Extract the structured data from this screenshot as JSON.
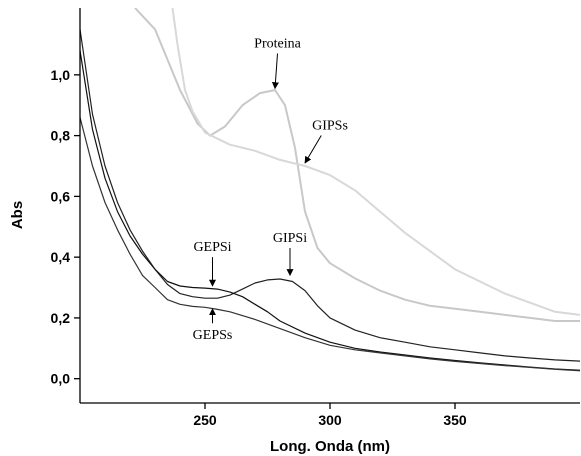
{
  "chart_data": {
    "type": "line",
    "xlabel": "Long. Onda (nm)",
    "ylabel": "Abs",
    "xlim": [
      200,
      400
    ],
    "ylim": [
      -0.08,
      1.22
    ],
    "xticks": [
      250,
      300,
      350
    ],
    "xtick_labels": [
      "250",
      "300",
      "350"
    ],
    "yticks": [
      0.0,
      0.2,
      0.4,
      0.6,
      0.8,
      1.0
    ],
    "ytick_labels": [
      "0,0",
      "0,2",
      "0,4",
      "0,6",
      "0,8",
      "1,0"
    ],
    "grid": false,
    "series": [
      {
        "name": "Proteina",
        "color": "#c8c8c8",
        "x": [
          222,
          230,
          240,
          247,
          252,
          258,
          265,
          272,
          278,
          282,
          286,
          290,
          295,
          300,
          310,
          320,
          330,
          340,
          350,
          360,
          370,
          380,
          390,
          400
        ],
        "y": [
          1.22,
          1.15,
          0.95,
          0.84,
          0.8,
          0.83,
          0.9,
          0.94,
          0.95,
          0.9,
          0.76,
          0.55,
          0.43,
          0.38,
          0.33,
          0.29,
          0.26,
          0.24,
          0.23,
          0.22,
          0.21,
          0.2,
          0.19,
          0.19
        ]
      },
      {
        "name": "GIPSs",
        "color": "#d8d8d8",
        "x": [
          237,
          239,
          242,
          245,
          250,
          255,
          260,
          270,
          280,
          290,
          300,
          310,
          320,
          330,
          340,
          350,
          360,
          370,
          380,
          390,
          400
        ],
        "y": [
          1.22,
          1.1,
          0.95,
          0.88,
          0.81,
          0.79,
          0.77,
          0.75,
          0.72,
          0.7,
          0.67,
          0.62,
          0.55,
          0.48,
          0.42,
          0.36,
          0.32,
          0.28,
          0.25,
          0.22,
          0.21
        ]
      },
      {
        "name": "GIPSi",
        "color": "#222222",
        "x": [
          200,
          205,
          210,
          215,
          220,
          225,
          230,
          235,
          240,
          245,
          250,
          255,
          260,
          265,
          270,
          275,
          280,
          285,
          290,
          295,
          300,
          310,
          320,
          330,
          340,
          350,
          360,
          370,
          380,
          390,
          400
        ],
        "y": [
          1.15,
          0.87,
          0.7,
          0.58,
          0.49,
          0.42,
          0.36,
          0.31,
          0.28,
          0.27,
          0.265,
          0.265,
          0.275,
          0.295,
          0.315,
          0.325,
          0.328,
          0.32,
          0.29,
          0.24,
          0.2,
          0.16,
          0.135,
          0.12,
          0.105,
          0.095,
          0.085,
          0.075,
          0.068,
          0.062,
          0.058
        ]
      },
      {
        "name": "GEPSi",
        "color": "#111111",
        "x": [
          200,
          205,
          210,
          215,
          220,
          225,
          230,
          235,
          240,
          245,
          250,
          255,
          260,
          265,
          270,
          275,
          280,
          290,
          300,
          310,
          320,
          330,
          340,
          350,
          360,
          370,
          380,
          390,
          400
        ],
        "y": [
          1.08,
          0.82,
          0.66,
          0.55,
          0.47,
          0.41,
          0.36,
          0.32,
          0.305,
          0.3,
          0.298,
          0.295,
          0.285,
          0.27,
          0.245,
          0.22,
          0.19,
          0.15,
          0.12,
          0.1,
          0.088,
          0.078,
          0.068,
          0.06,
          0.052,
          0.045,
          0.038,
          0.032,
          0.028
        ]
      },
      {
        "name": "GEPSs",
        "color": "#333333",
        "x": [
          200,
          205,
          210,
          215,
          220,
          225,
          230,
          235,
          240,
          245,
          250,
          255,
          260,
          270,
          280,
          290,
          300,
          310,
          320,
          330,
          340,
          350,
          360,
          370,
          380,
          390,
          400
        ],
        "y": [
          0.86,
          0.7,
          0.58,
          0.49,
          0.41,
          0.34,
          0.3,
          0.26,
          0.245,
          0.238,
          0.235,
          0.228,
          0.22,
          0.195,
          0.165,
          0.135,
          0.11,
          0.095,
          0.085,
          0.075,
          0.065,
          0.057,
          0.05,
          0.043,
          0.037,
          0.031,
          0.026
        ]
      }
    ],
    "annotations": [
      {
        "text": "Proteina",
        "x": 279,
        "y": 1.09,
        "arrow_to": [
          278,
          0.955
        ]
      },
      {
        "text": "GIPSs",
        "x": 300,
        "y": 0.82,
        "arrow_to": [
          290,
          0.71
        ]
      },
      {
        "text": "GIPSi",
        "x": 284,
        "y": 0.45,
        "arrow_to": [
          284,
          0.34
        ]
      },
      {
        "text": "GEPSi",
        "x": 253,
        "y": 0.42,
        "arrow_to": [
          253,
          0.305
        ]
      },
      {
        "text": "GEPSs",
        "x": 253,
        "y": 0.13,
        "arrow_to": [
          253,
          0.23
        ]
      }
    ]
  }
}
